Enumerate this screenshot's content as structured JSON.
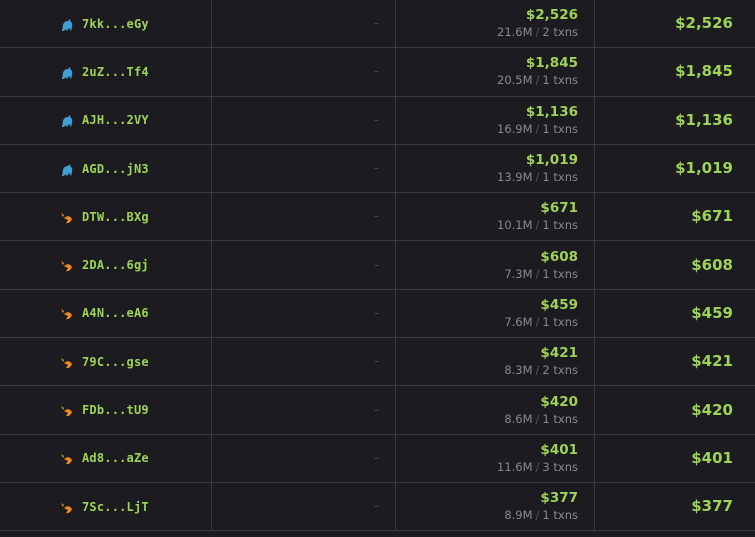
{
  "colors": {
    "accent": "#9dd35a",
    "whale": "#3f9fd0",
    "shrimp": "#f08a24",
    "background": "#1c1b20"
  },
  "rows": [
    {
      "icon": "whale-icon",
      "address": "7kk...eGy",
      "col2": "–",
      "amount": "$2,526",
      "volume": "21.6M",
      "txns": "2 txns",
      "total": "$2,526"
    },
    {
      "icon": "whale-icon",
      "address": "2uZ...Tf4",
      "col2": "–",
      "amount": "$1,845",
      "volume": "20.5M",
      "txns": "1 txns",
      "total": "$1,845"
    },
    {
      "icon": "whale-icon",
      "address": "AJH...2VY",
      "col2": "–",
      "amount": "$1,136",
      "volume": "16.9M",
      "txns": "1 txns",
      "total": "$1,136"
    },
    {
      "icon": "whale-icon",
      "address": "AGD...jN3",
      "col2": "–",
      "amount": "$1,019",
      "volume": "13.9M",
      "txns": "1 txns",
      "total": "$1,019"
    },
    {
      "icon": "shrimp-icon",
      "address": "DTW...BXg",
      "col2": "–",
      "amount": "$671",
      "volume": "10.1M",
      "txns": "1 txns",
      "total": "$671"
    },
    {
      "icon": "shrimp-icon",
      "address": "2DA...6gj",
      "col2": "–",
      "amount": "$608",
      "volume": "7.3M",
      "txns": "1 txns",
      "total": "$608"
    },
    {
      "icon": "shrimp-icon",
      "address": "A4N...eA6",
      "col2": "–",
      "amount": "$459",
      "volume": "7.6M",
      "txns": "1 txns",
      "total": "$459"
    },
    {
      "icon": "shrimp-icon",
      "address": "79C...gse",
      "col2": "–",
      "amount": "$421",
      "volume": "8.3M",
      "txns": "2 txns",
      "total": "$421"
    },
    {
      "icon": "shrimp-icon",
      "address": "FDb...tU9",
      "col2": "–",
      "amount": "$420",
      "volume": "8.6M",
      "txns": "1 txns",
      "total": "$420"
    },
    {
      "icon": "shrimp-icon",
      "address": "Ad8...aZe",
      "col2": "–",
      "amount": "$401",
      "volume": "11.6M",
      "txns": "3 txns",
      "total": "$401"
    },
    {
      "icon": "shrimp-icon",
      "address": "7Sc...LjT",
      "col2": "–",
      "amount": "$377",
      "volume": "8.9M",
      "txns": "1 txns",
      "total": "$377"
    }
  ]
}
